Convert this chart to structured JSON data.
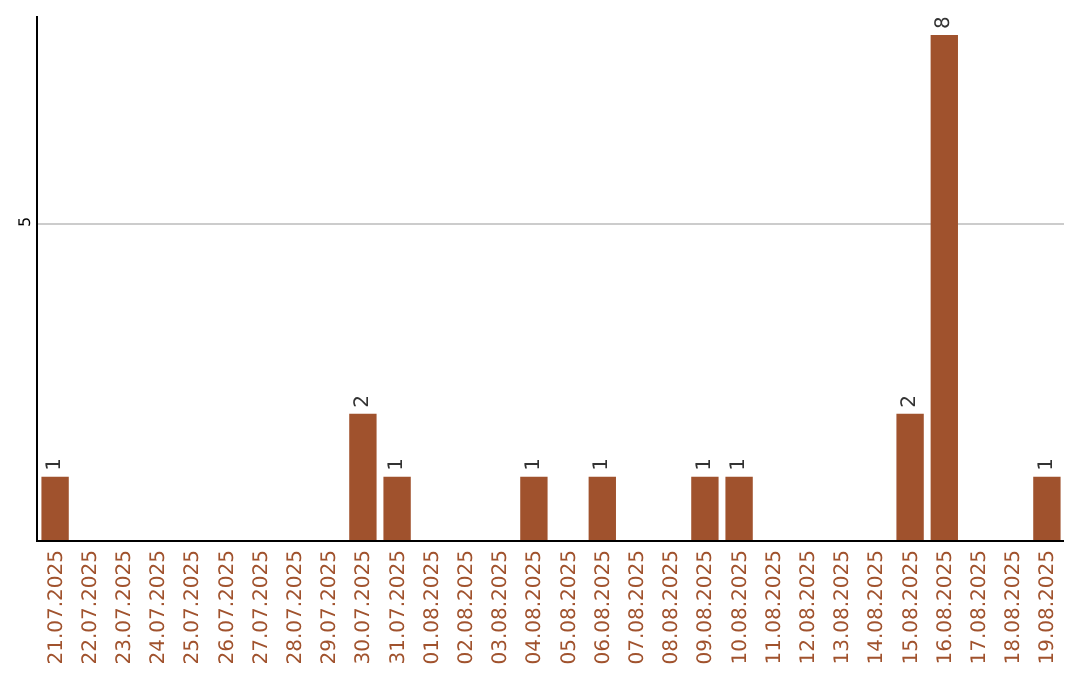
{
  "chart_data": {
    "type": "bar",
    "categories": [
      "21.07.2025",
      "22.07.2025",
      "23.07.2025",
      "24.07.2025",
      "25.07.2025",
      "26.07.2025",
      "27.07.2025",
      "28.07.2025",
      "29.07.2025",
      "30.07.2025",
      "31.07.2025",
      "01.08.2025",
      "02.08.2025",
      "03.08.2025",
      "04.08.2025",
      "05.08.2025",
      "06.08.2025",
      "07.08.2025",
      "08.08.2025",
      "09.08.2025",
      "10.08.2025",
      "11.08.2025",
      "12.08.2025",
      "13.08.2025",
      "14.08.2025",
      "15.08.2025",
      "16.08.2025",
      "17.08.2025",
      "18.08.2025",
      "19.08.2025"
    ],
    "values": [
      1,
      0,
      0,
      0,
      0,
      0,
      0,
      0,
      0,
      2,
      1,
      0,
      0,
      0,
      1,
      0,
      1,
      0,
      0,
      1,
      1,
      0,
      0,
      0,
      0,
      2,
      8,
      0,
      0,
      1
    ],
    "value_labels": [
      "1",
      null,
      null,
      null,
      null,
      null,
      null,
      null,
      null,
      "2",
      "1",
      null,
      null,
      null,
      "1",
      null,
      "1",
      null,
      null,
      "1",
      "1",
      null,
      null,
      null,
      null,
      "2",
      "8",
      null,
      null,
      "1"
    ],
    "color": "#a0522d",
    "ylim": [
      0,
      8.3
    ],
    "yticks": [
      5
    ],
    "grid": "y"
  }
}
